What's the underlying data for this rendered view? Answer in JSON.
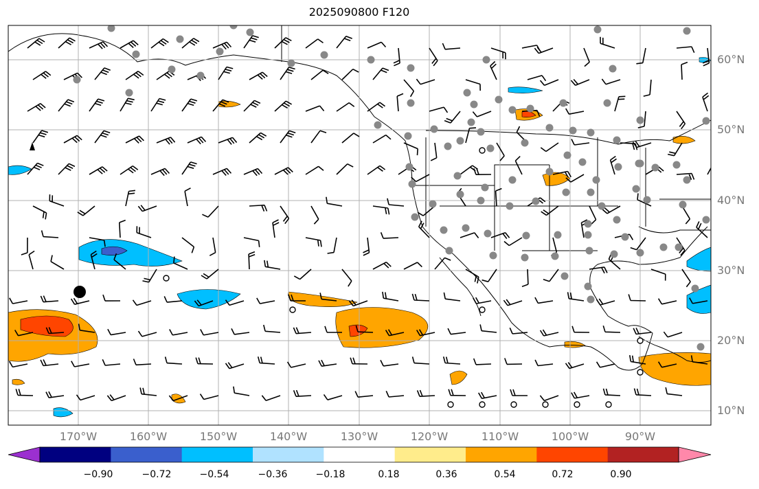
{
  "title": "2025090800 F120",
  "lat_labels": [
    "60°N",
    "50°N",
    "40°N",
    "30°N",
    "20°N",
    "10°N"
  ],
  "lon_labels": [
    "170°W",
    "160°W",
    "150°W",
    "140°W",
    "130°W",
    "120°W",
    "110°W",
    "100°W",
    "90°W"
  ],
  "colorbar": {
    "colors": [
      "#9b30d0",
      "#000080",
      "#3a5fcd",
      "#00bfff",
      "#b0e2ff",
      "#ffffff",
      "#ffec8b",
      "#ffa500",
      "#ff4500",
      "#b22222",
      "#ff88aa"
    ],
    "ticks": [
      "−0.90",
      "−0.72",
      "−0.54",
      "−0.36",
      "−0.18",
      "0.18",
      "0.36",
      "0.54",
      "0.72",
      "0.90"
    ]
  },
  "map": {
    "projection": "PlateCarree",
    "lon_range": [
      -180,
      -80
    ],
    "lat_range": [
      8,
      65
    ],
    "field": "correlation",
    "grid": true
  }
}
